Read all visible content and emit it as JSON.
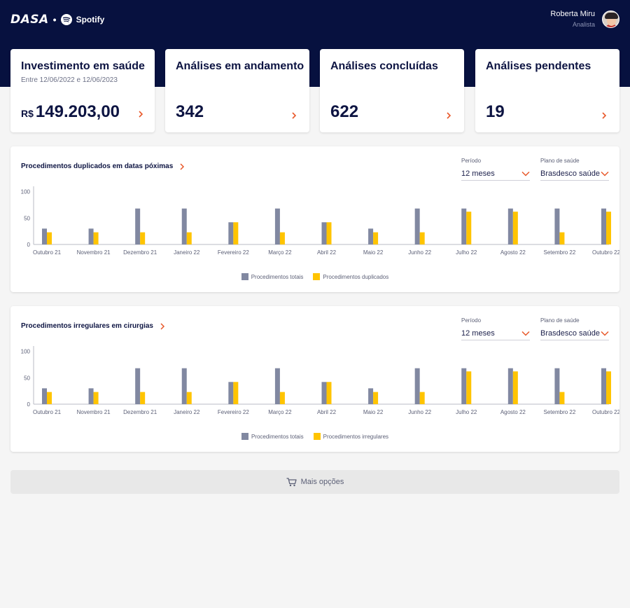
{
  "header": {
    "brand_dasa": "DASA",
    "brand_separator": "•",
    "brand_spotify": "Spotify",
    "user_name": "Roberta Miru",
    "user_role": "Analista",
    "icons": [
      "spotify-icon",
      "avatar"
    ]
  },
  "kpis": [
    {
      "title": "Investimento em saúde",
      "subtitle": "Entre 12/06/2022 e 12/06/2023",
      "currency": "R$",
      "value": "149.203,00"
    },
    {
      "title": "Análises em andamento",
      "value": "342"
    },
    {
      "title": "Análises concluídas",
      "value": "622"
    },
    {
      "title": "Análises pendentes",
      "value": "19"
    }
  ],
  "colors": {
    "header_bg": "#07113f",
    "accent": "#e8582a",
    "series_total": "#8188a1",
    "series_other": "#ffc400"
  },
  "charts": [
    {
      "title": "Procedimentos duplicados em datas póximas",
      "filters": [
        {
          "label": "Período",
          "value": "12 meses"
        },
        {
          "label": "Plano de saúde",
          "value": "Brasdesco saúde"
        }
      ],
      "legend": [
        "Procedimentos totais",
        "Procedimentos duplicados"
      ]
    },
    {
      "title": "Procedimentos irregulares em cirurgias",
      "filters": [
        {
          "label": "Período",
          "value": "12 meses"
        },
        {
          "label": "Plano de saúde",
          "value": "Brasdesco saúde"
        }
      ],
      "legend": [
        "Procedimentos totais",
        "Procedimentos irregulares"
      ]
    }
  ],
  "chart_data": [
    {
      "type": "bar",
      "categories": [
        "Outubro 21",
        "Novembro 21",
        "Dezembro 21",
        "Janeiro 22",
        "Fevereiro 22",
        "Março 22",
        "Abril 22",
        "Maio 22",
        "Junho 22",
        "Julho 22",
        "Agosto 22",
        "Setembro 22",
        "Outubro 22"
      ],
      "series": [
        {
          "name": "Procedimentos totais",
          "values": [
            30,
            30,
            68,
            68,
            42,
            68,
            42,
            30,
            68,
            68,
            68,
            68,
            68
          ]
        },
        {
          "name": "Procedimentos duplicados",
          "values": [
            23,
            23,
            23,
            23,
            42,
            23,
            42,
            23,
            23,
            62,
            62,
            23,
            62
          ]
        }
      ],
      "y_ticks": [
        0,
        50,
        100
      ],
      "ylim": [
        0,
        110
      ],
      "legend_position": "bottom"
    },
    {
      "type": "bar",
      "categories": [
        "Outubro 21",
        "Novembro 21",
        "Dezembro 21",
        "Janeiro 22",
        "Fevereiro 22",
        "Março 22",
        "Abril 22",
        "Maio 22",
        "Junho 22",
        "Julho 22",
        "Agosto 22",
        "Setembro 22",
        "Outubro 22"
      ],
      "series": [
        {
          "name": "Procedimentos totais",
          "values": [
            30,
            30,
            68,
            68,
            42,
            68,
            42,
            30,
            68,
            68,
            68,
            68,
            68
          ]
        },
        {
          "name": "Procedimentos irregulares",
          "values": [
            23,
            23,
            23,
            23,
            42,
            23,
            42,
            23,
            23,
            62,
            62,
            23,
            62
          ]
        }
      ],
      "y_ticks": [
        0,
        50,
        100
      ],
      "ylim": [
        0,
        110
      ],
      "legend_position": "bottom"
    }
  ],
  "more_options": {
    "label": "Mais opções"
  }
}
